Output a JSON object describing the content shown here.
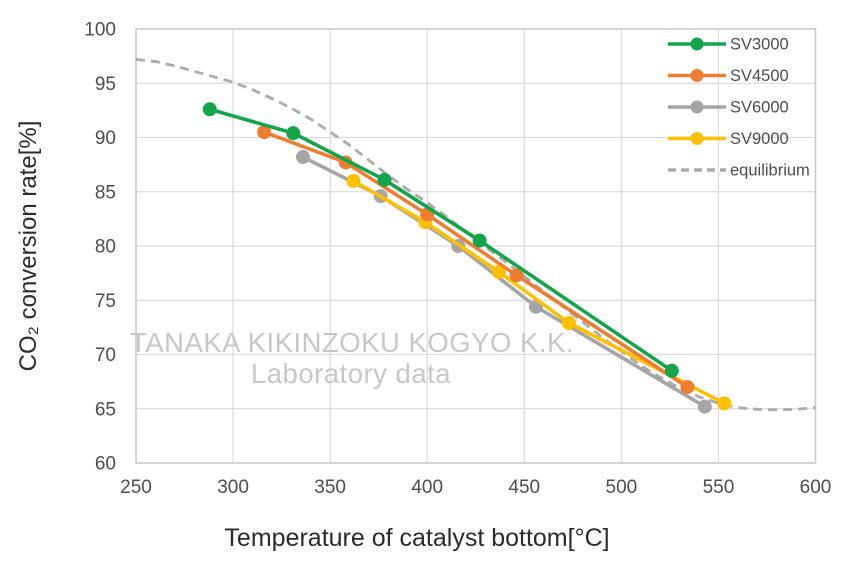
{
  "chart_data": {
    "type": "line",
    "title": "",
    "xlabel": "Temperature of catalyst bottom[°C]",
    "ylabel": "CO₂ conversion rate[%]",
    "xlim": [
      250,
      600
    ],
    "ylim": [
      60,
      100
    ],
    "x_ticks": [
      250,
      300,
      350,
      400,
      450,
      500,
      550,
      600
    ],
    "y_ticks": [
      100,
      95,
      90,
      85,
      80,
      75,
      70,
      65,
      60
    ],
    "grid": true,
    "legend_position": "inside-top-right",
    "series": [
      {
        "name": "SV3000",
        "color": "#12a54b",
        "marker": "circle",
        "style": "solid",
        "points": [
          [
            288,
            92.6
          ],
          [
            331,
            90.4
          ],
          [
            378,
            86.1
          ],
          [
            427,
            80.5
          ],
          [
            526,
            68.5
          ]
        ]
      },
      {
        "name": "SV4500",
        "color": "#ed7d31",
        "marker": "circle",
        "style": "solid",
        "points": [
          [
            316,
            90.5
          ],
          [
            358,
            87.7
          ],
          [
            400,
            82.9
          ],
          [
            446,
            77.3
          ],
          [
            534,
            67.0
          ]
        ]
      },
      {
        "name": "SV6000",
        "color": "#a5a5a5",
        "marker": "circle",
        "style": "solid",
        "points": [
          [
            336,
            88.2
          ],
          [
            376,
            84.6
          ],
          [
            416,
            80.0
          ],
          [
            456,
            74.4
          ],
          [
            543,
            65.2
          ]
        ]
      },
      {
        "name": "SV9000",
        "color": "#ffc000",
        "marker": "circle",
        "style": "solid",
        "points": [
          [
            362,
            86.0
          ],
          [
            399,
            82.2
          ],
          [
            437,
            77.6
          ],
          [
            473,
            72.9
          ],
          [
            553,
            65.5
          ]
        ]
      },
      {
        "name": "equilibrium",
        "color": "#ababab",
        "marker": "none",
        "style": "dashed",
        "points": [
          [
            250,
            97.2
          ],
          [
            260,
            97.0
          ],
          [
            270,
            96.6
          ],
          [
            280,
            96.1
          ],
          [
            290,
            95.6
          ],
          [
            300,
            95.1
          ],
          [
            310,
            94.4
          ],
          [
            320,
            93.6
          ],
          [
            330,
            92.7
          ],
          [
            340,
            91.7
          ],
          [
            350,
            90.5
          ],
          [
            360,
            89.3
          ],
          [
            370,
            87.9
          ],
          [
            380,
            86.5
          ],
          [
            390,
            85.2
          ],
          [
            400,
            84.0
          ],
          [
            410,
            82.7
          ],
          [
            420,
            81.3
          ],
          [
            430,
            79.9
          ],
          [
            440,
            78.6
          ],
          [
            450,
            77.2
          ],
          [
            460,
            75.8
          ],
          [
            470,
            74.4
          ],
          [
            480,
            73.0
          ],
          [
            490,
            71.6
          ],
          [
            500,
            70.3
          ],
          [
            510,
            69.0
          ],
          [
            520,
            67.9
          ],
          [
            530,
            66.9
          ],
          [
            540,
            66.1
          ],
          [
            550,
            65.5
          ],
          [
            560,
            65.1
          ],
          [
            570,
            64.95
          ],
          [
            580,
            64.9
          ],
          [
            590,
            64.95
          ],
          [
            600,
            65.1
          ]
        ]
      }
    ],
    "draw_order": [
      "equilibrium",
      "SV6000",
      "SV9000",
      "SV4500",
      "SV3000"
    ],
    "watermark_line1": "TANAKA KIKINZOKU KOGYO K.K.",
    "watermark_line2": "Laboratory data"
  },
  "styles": {
    "grid_color": "#dcdcdc",
    "border_color": "#c9c9c9",
    "tick_label_color": "#4d4d4d",
    "axis_title_color": "#2b2b2b",
    "legend_label_color": "#4d4d4d",
    "watermark_color": "#c7c7c7"
  }
}
